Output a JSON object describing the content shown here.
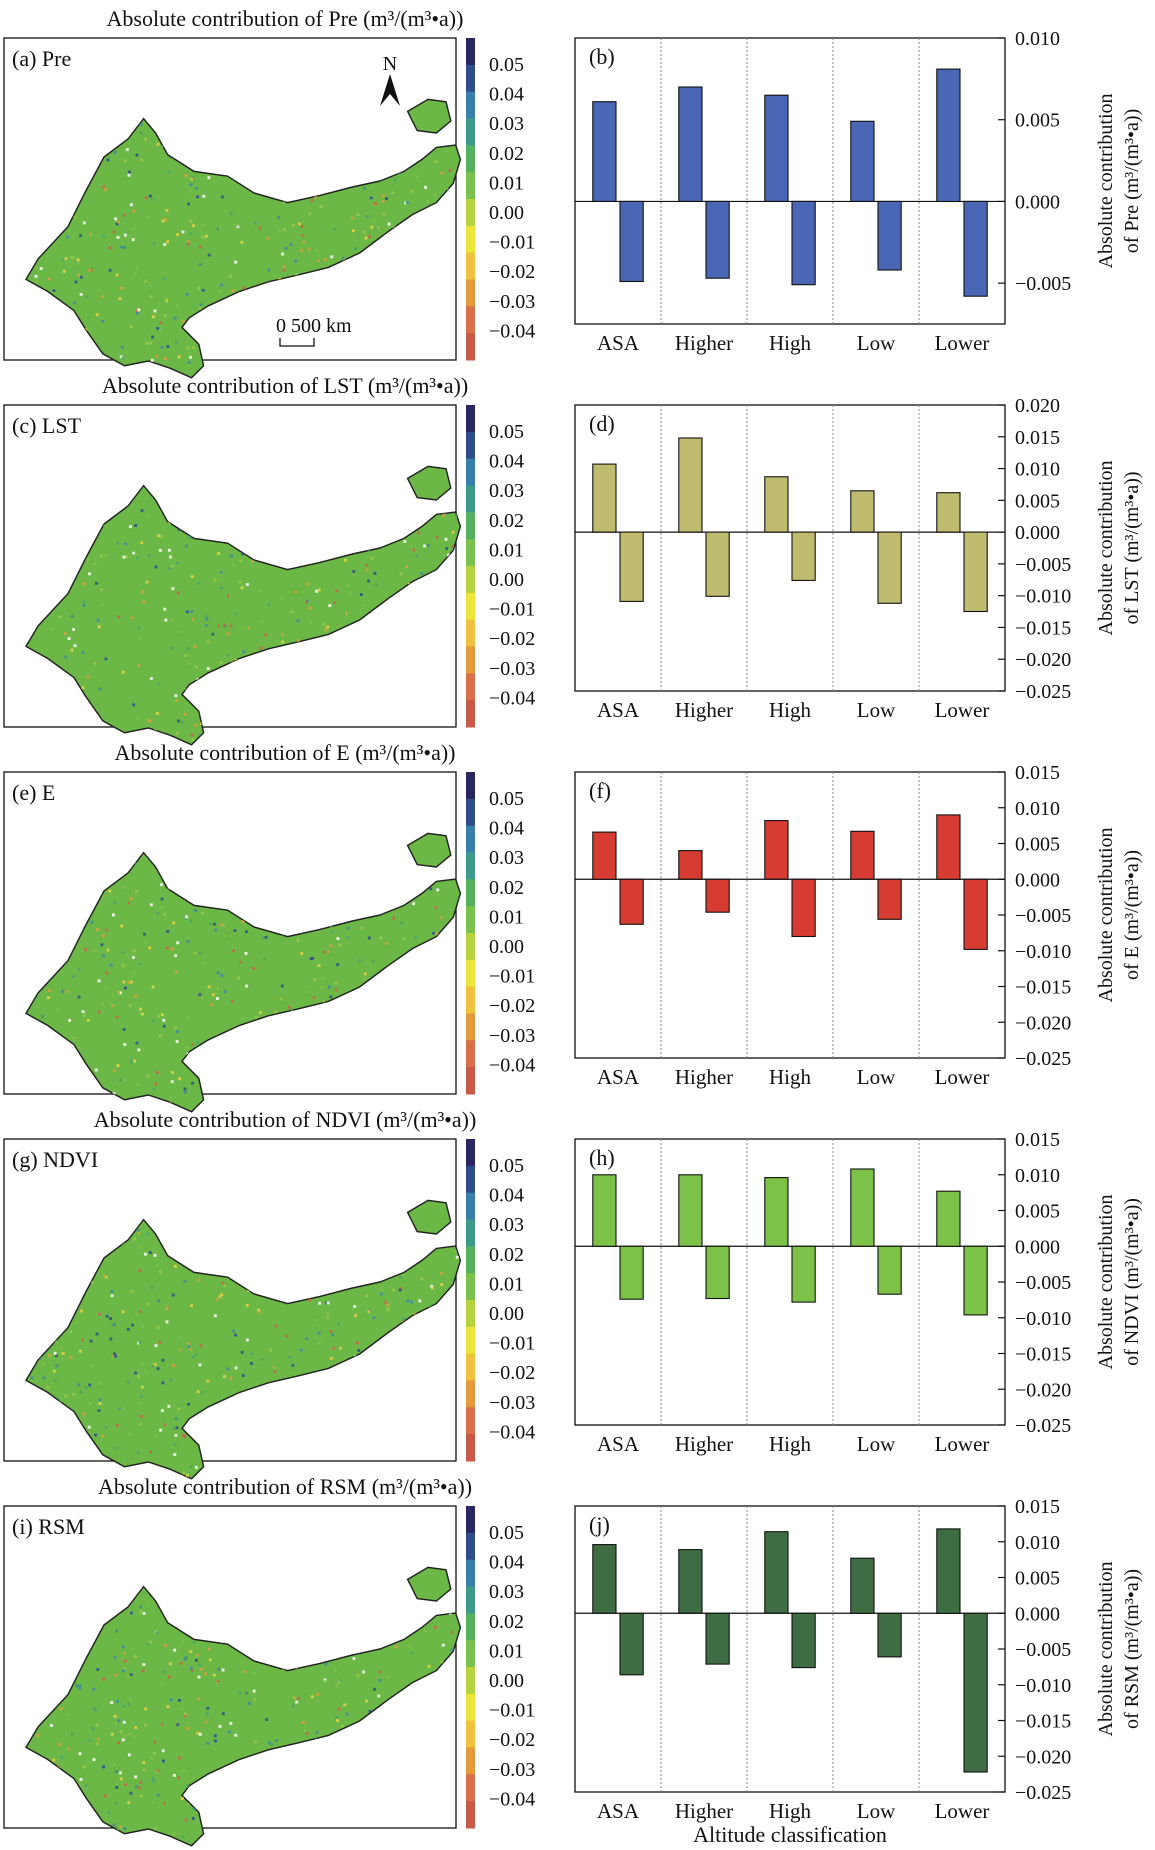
{
  "colorbar_ticks": [
    "0.05",
    "0.04",
    "0.03",
    "0.02",
    "0.01",
    "0.00",
    "−0.01",
    "−0.02",
    "−0.03",
    "−0.04"
  ],
  "colorbar_colors": [
    "#2a2760",
    "#2f4d8a",
    "#3a7eaa",
    "#3d9a8a",
    "#55b061",
    "#7cc04e",
    "#b6d23c",
    "#ece53a",
    "#eec23c",
    "#e29a3c",
    "#d8704a",
    "#c85a4a"
  ],
  "map_fill": "#6cb846",
  "north_label": "N",
  "scale_label": "0  500 km",
  "x_axis_title": "Altitude classification",
  "rows": [
    {
      "map_title": "Absolute contribution of Pre (m³/(m³•a))",
      "map_label": "(a) Pre",
      "chart_label": "(b)",
      "ylabel_line1": "Absolute contribution",
      "ylabel_line2": "of Pre (m³/(m³•a))",
      "color": "#4a67b5",
      "ylim": [
        -0.0075,
        0.01
      ],
      "ticks": [
        "0.010",
        "0.005",
        "0.000",
        "−0.005"
      ]
    },
    {
      "map_title": "Absolute contribution of LST (m³/(m³•a))",
      "map_label": "(c) LST",
      "chart_label": "(d)",
      "ylabel_line1": "Absolute contribution",
      "ylabel_line2": "of LST (m³/(m³•a))",
      "color": "#bfbc70",
      "ylim": [
        -0.025,
        0.02
      ],
      "ticks": [
        "0.020",
        "0.015",
        "0.010",
        "0.005",
        "0.000",
        "−0.005",
        "−0.010",
        "−0.015",
        "−0.020",
        "−0.025"
      ]
    },
    {
      "map_title": "Absolute contribution of E (m³/(m³•a))",
      "map_label": "(e) E",
      "chart_label": "(f)",
      "ylabel_line1": "Absolute contribution",
      "ylabel_line2": "of E (m³/(m³•a))",
      "color": "#d63c32",
      "ylim": [
        -0.025,
        0.015
      ],
      "ticks": [
        "0.015",
        "0.010",
        "0.005",
        "0.000",
        "−0.005",
        "−0.010",
        "−0.015",
        "−0.020",
        "−0.025"
      ]
    },
    {
      "map_title": "Absolute contribution of NDVI (m³/(m³•a))",
      "map_label": "(g) NDVI",
      "chart_label": "(h)",
      "ylabel_line1": "Absolute contribution",
      "ylabel_line2": "of NDVI (m³/(m³•a))",
      "color": "#7cc148",
      "ylim": [
        -0.025,
        0.015
      ],
      "ticks": [
        "0.015",
        "0.010",
        "0.005",
        "0.000",
        "−0.005",
        "−0.010",
        "−0.015",
        "−0.020",
        "−0.025"
      ]
    },
    {
      "map_title": "Absolute contribution of RSM (m³/(m³•a))",
      "map_label": "(i) RSM",
      "chart_label": "(j)",
      "ylabel_line1": "Absolute contribution",
      "ylabel_line2": "of RSM (m³/(m³•a))",
      "color": "#3e6d44",
      "ylim": [
        -0.025,
        0.015
      ],
      "ticks": [
        "0.015",
        "0.010",
        "0.005",
        "0.000",
        "−0.005",
        "−0.010",
        "−0.015",
        "−0.020",
        "−0.025"
      ]
    }
  ],
  "chart_data": [
    {
      "type": "bar",
      "categories": [
        "ASA",
        "Higher",
        "High",
        "Low",
        "Lower"
      ],
      "series": [
        {
          "values": [
            0.0061,
            0.007,
            0.0065,
            0.0049,
            0.0081
          ]
        },
        {
          "values": [
            -0.0049,
            -0.0047,
            -0.0051,
            -0.0042,
            -0.0058
          ]
        }
      ],
      "ylim": [
        -0.0075,
        0.01
      ],
      "ylabel": "Absolute contribution of Pre (m³/(m³•a))",
      "xlabel": "Altitude classification"
    },
    {
      "type": "bar",
      "categories": [
        "ASA",
        "Higher",
        "High",
        "Low",
        "Lower"
      ],
      "series": [
        {
          "values": [
            0.0107,
            0.0148,
            0.0087,
            0.0065,
            0.0062
          ]
        },
        {
          "values": [
            -0.0109,
            -0.0101,
            -0.0076,
            -0.0112,
            -0.0125
          ]
        }
      ],
      "ylim": [
        -0.025,
        0.02
      ],
      "ylabel": "Absolute contribution of LST (m³/(m³•a))",
      "xlabel": "Altitude classification"
    },
    {
      "type": "bar",
      "categories": [
        "ASA",
        "Higher",
        "High",
        "Low",
        "Lower"
      ],
      "series": [
        {
          "values": [
            0.0066,
            0.004,
            0.0082,
            0.0067,
            0.009
          ]
        },
        {
          "values": [
            -0.0063,
            -0.0046,
            -0.008,
            -0.0056,
            -0.0098
          ]
        }
      ],
      "ylim": [
        -0.025,
        0.015
      ],
      "ylabel": "Absolute contribution of E (m³/(m³•a))",
      "xlabel": "Altitude classification"
    },
    {
      "type": "bar",
      "categories": [
        "ASA",
        "Higher",
        "High",
        "Low",
        "Lower"
      ],
      "series": [
        {
          "values": [
            0.01,
            0.01,
            0.0096,
            0.0108,
            0.0077
          ]
        },
        {
          "values": [
            -0.0074,
            -0.0073,
            -0.0078,
            -0.0067,
            -0.0096
          ]
        }
      ],
      "ylim": [
        -0.025,
        0.015
      ],
      "ylabel": "Absolute contribution of NDVI (m³/(m³•a))",
      "xlabel": "Altitude classification"
    },
    {
      "type": "bar",
      "categories": [
        "ASA",
        "Higher",
        "High",
        "Low",
        "Lower"
      ],
      "series": [
        {
          "values": [
            0.0096,
            0.0089,
            0.0114,
            0.0077,
            0.0118
          ]
        },
        {
          "values": [
            -0.0086,
            -0.0071,
            -0.0076,
            -0.0061,
            -0.0222
          ]
        }
      ],
      "ylim": [
        -0.025,
        0.015
      ],
      "ylabel": "Absolute contribution of RSM (m³/(m³•a))",
      "xlabel": "Altitude classification"
    }
  ]
}
